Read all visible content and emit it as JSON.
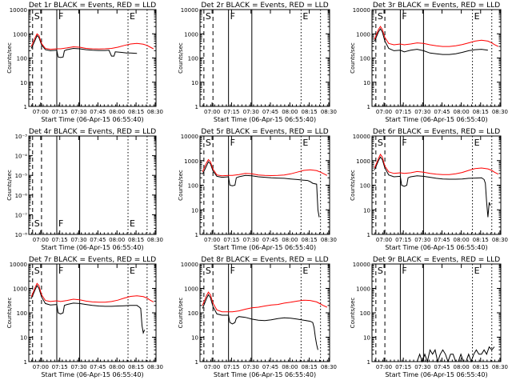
{
  "xlabel": "Start Time (06-Apr-15 06:55:40)",
  "ylabel": "Counts/sec",
  "x_ticks": [
    "07:00",
    "07:15",
    "07:30",
    "07:45",
    "08:00",
    "08:15",
    "08:30"
  ],
  "x_range_minutes": [
    -5,
    95
  ],
  "colors": {
    "events": "#000000",
    "lld": "#ff0000",
    "axes": "#000000"
  },
  "markers": [
    {
      "label": "S",
      "x": -2,
      "style": "dashed"
    },
    {
      "label": "",
      "x": 5,
      "style": "dashed"
    },
    {
      "label": "F",
      "x": 17,
      "style": "solid"
    },
    {
      "label": "",
      "x": 35,
      "style": "solid"
    },
    {
      "label": "E",
      "x": 73,
      "style": "dotted"
    },
    {
      "label": "",
      "x": 88,
      "style": "dotted"
    }
  ],
  "chart_data": [
    {
      "type": "line",
      "title": "Det 1r  BLACK = Events, RED = LLD",
      "yscale": "log",
      "ylim": [
        1,
        10000
      ],
      "y_ticks": [
        "1",
        "10",
        "100",
        "1000",
        "10000"
      ],
      "series": [
        {
          "color": "red",
          "x": [
            -3,
            0,
            1.5,
            3,
            5,
            8,
            12,
            17,
            20,
            25,
            30,
            35,
            40,
            45,
            50,
            55,
            60,
            65,
            70,
            75,
            80,
            85,
            88,
            90,
            93
          ],
          "y": [
            300,
            700,
            1000,
            850,
            400,
            250,
            230,
            240,
            240,
            260,
            290,
            280,
            250,
            240,
            235,
            240,
            250,
            280,
            330,
            380,
            400,
            370,
            330,
            290,
            240
          ]
        },
        {
          "color": "black",
          "x": [
            -3,
            0,
            1.5,
            3,
            5,
            8,
            12,
            17,
            18,
            20,
            22,
            23,
            25,
            30,
            35,
            40,
            45,
            50,
            55,
            58,
            60,
            62,
            63,
            68,
            72,
            75,
            80
          ],
          "y": [
            250,
            550,
            850,
            700,
            350,
            220,
            200,
            210,
            110,
            105,
            110,
            200,
            220,
            250,
            240,
            220,
            210,
            205,
            205,
            210,
            120,
            120,
            180,
            170,
            160,
            160,
            155
          ]
        }
      ]
    },
    {
      "type": "line",
      "title": "Det 2r  BLACK = Events, RED = LLD",
      "yscale": "log",
      "ylim": [
        1,
        10000
      ],
      "y_ticks": [
        "1",
        "10",
        "100",
        "1000",
        "10000"
      ],
      "series": []
    },
    {
      "type": "line",
      "title": "Det 3r  BLACK = Events, RED = LLD",
      "yscale": "log",
      "ylim": [
        1,
        10000
      ],
      "y_ticks": [
        "1",
        "10",
        "100",
        "1000",
        "10000"
      ],
      "series": [
        {
          "color": "red",
          "x": [
            -3,
            0,
            1.5,
            3,
            5,
            8,
            12,
            17,
            20,
            25,
            30,
            35,
            40,
            45,
            50,
            55,
            60,
            65,
            70,
            75,
            80,
            85,
            88,
            90,
            93
          ],
          "y": [
            600,
            1500,
            2000,
            1500,
            700,
            400,
            350,
            380,
            350,
            380,
            420,
            400,
            350,
            320,
            300,
            300,
            320,
            360,
            420,
            500,
            540,
            500,
            420,
            360,
            300
          ]
        },
        {
          "color": "black",
          "x": [
            -3,
            0,
            1.5,
            3,
            5,
            8,
            12,
            17,
            20,
            25,
            30,
            35,
            40,
            45,
            50,
            55,
            60,
            65,
            70,
            75,
            80,
            85
          ],
          "y": [
            500,
            1200,
            1600,
            1200,
            500,
            250,
            200,
            210,
            180,
            210,
            230,
            200,
            160,
            150,
            140,
            140,
            150,
            170,
            200,
            220,
            230,
            210
          ]
        }
      ]
    },
    {
      "type": "line",
      "title": "Det 4r  BLACK = Events, RED = LLD",
      "yscale": "log",
      "ylim": [
        1e-08,
        0.001
      ],
      "y_ticks": [
        "10⁻⁸",
        "10⁻⁷",
        "10⁻⁶",
        "10⁻⁵",
        "10⁻⁴",
        "10⁻³"
      ],
      "series": []
    },
    {
      "type": "line",
      "title": "Det 5r  BLACK = Events, RED = LLD",
      "yscale": "log",
      "ylim": [
        1,
        10000
      ],
      "y_ticks": [
        "1",
        "10",
        "100",
        "1000",
        "10000"
      ],
      "series": [
        {
          "color": "red",
          "x": [
            -3,
            0,
            1.5,
            3,
            5,
            8,
            12,
            17,
            20,
            25,
            30,
            35,
            40,
            45,
            50,
            55,
            60,
            65,
            70,
            75,
            80,
            85,
            88,
            90,
            93
          ],
          "y": [
            350,
            800,
            1100,
            900,
            450,
            260,
            240,
            250,
            250,
            270,
            300,
            290,
            260,
            250,
            245,
            250,
            260,
            290,
            340,
            400,
            420,
            390,
            340,
            300,
            250
          ]
        },
        {
          "color": "black",
          "x": [
            -3,
            0,
            1.5,
            3,
            5,
            8,
            12,
            17,
            18,
            20,
            22,
            23,
            25,
            30,
            35,
            40,
            45,
            50,
            55,
            60,
            65,
            70,
            75,
            78,
            80,
            82,
            85,
            86,
            87
          ],
          "y": [
            280,
            600,
            900,
            750,
            380,
            230,
            210,
            220,
            100,
            95,
            100,
            200,
            220,
            250,
            240,
            220,
            210,
            200,
            195,
            190,
            180,
            170,
            160,
            155,
            140,
            120,
            110,
            10,
            5
          ]
        }
      ]
    },
    {
      "type": "line",
      "title": "Det 6r  BLACK = Events, RED = LLD",
      "yscale": "log",
      "ylim": [
        1,
        10000
      ],
      "y_ticks": [
        "1",
        "10",
        "100",
        "1000",
        "10000"
      ],
      "series": [
        {
          "color": "red",
          "x": [
            -3,
            0,
            1.5,
            3,
            5,
            8,
            12,
            17,
            20,
            25,
            30,
            35,
            40,
            45,
            50,
            55,
            60,
            65,
            70,
            75,
            80,
            85,
            88,
            90,
            93
          ],
          "y": [
            500,
            1200,
            1800,
            1400,
            600,
            350,
            300,
            320,
            300,
            320,
            360,
            340,
            300,
            280,
            270,
            270,
            290,
            330,
            400,
            470,
            500,
            460,
            400,
            340,
            280
          ]
        },
        {
          "color": "black",
          "x": [
            -3,
            0,
            1.5,
            3,
            5,
            8,
            12,
            17,
            18,
            20,
            22,
            23,
            25,
            30,
            35,
            40,
            45,
            50,
            55,
            60,
            65,
            70,
            75,
            80,
            82,
            83,
            84,
            85,
            86,
            87
          ],
          "y": [
            420,
            1000,
            1400,
            1100,
            500,
            260,
            220,
            230,
            100,
            90,
            100,
            200,
            220,
            240,
            230,
            210,
            190,
            180,
            175,
            175,
            180,
            190,
            195,
            200,
            170,
            120,
            20,
            5,
            20,
            15
          ]
        }
      ]
    },
    {
      "type": "line",
      "title": "Det 7r  BLACK = Events, RED = LLD",
      "yscale": "log",
      "ylim": [
        1,
        10000
      ],
      "y_ticks": [
        "1",
        "10",
        "100",
        "1000",
        "10000"
      ],
      "series": [
        {
          "color": "red",
          "x": [
            -3,
            0,
            1.5,
            3,
            5,
            8,
            12,
            17,
            20,
            25,
            30,
            35,
            40,
            45,
            50,
            55,
            60,
            65,
            70,
            75,
            80,
            85,
            88,
            90,
            93
          ],
          "y": [
            450,
            1100,
            1600,
            1300,
            550,
            320,
            290,
            310,
            290,
            320,
            360,
            340,
            300,
            280,
            270,
            270,
            290,
            330,
            400,
            470,
            500,
            460,
            400,
            340,
            280
          ]
        },
        {
          "color": "black",
          "x": [
            -3,
            0,
            1.5,
            3,
            5,
            8,
            12,
            17,
            18,
            20,
            22,
            23,
            25,
            30,
            35,
            40,
            45,
            50,
            55,
            60,
            65,
            70,
            75,
            80,
            82,
            83,
            84,
            85,
            86
          ],
          "y": [
            380,
            900,
            1300,
            1000,
            450,
            240,
            210,
            220,
            100,
            90,
            100,
            200,
            220,
            250,
            240,
            220,
            200,
            190,
            185,
            185,
            190,
            195,
            200,
            200,
            170,
            150,
            30,
            15,
            20
          ]
        }
      ]
    },
    {
      "type": "line",
      "title": "Det 8r  BLACK = Events, RED = LLD",
      "yscale": "log",
      "ylim": [
        1,
        10000
      ],
      "y_ticks": [
        "1",
        "10",
        "100",
        "1000",
        "10000"
      ],
      "series": [
        {
          "color": "red",
          "x": [
            -3,
            0,
            1.5,
            3,
            5,
            8,
            12,
            17,
            20,
            25,
            30,
            35,
            40,
            45,
            50,
            55,
            60,
            65,
            70,
            75,
            80,
            85,
            88,
            90,
            93
          ],
          "y": [
            200,
            500,
            700,
            550,
            250,
            130,
            110,
            110,
            110,
            120,
            140,
            160,
            170,
            190,
            210,
            220,
            250,
            270,
            300,
            330,
            320,
            280,
            230,
            200,
            170
          ]
        },
        {
          "color": "black",
          "x": [
            -3,
            0,
            1.5,
            3,
            5,
            8,
            12,
            17,
            18,
            20,
            22,
            23,
            25,
            30,
            35,
            40,
            45,
            50,
            55,
            60,
            65,
            70,
            75,
            80,
            82,
            83,
            84,
            85,
            86
          ],
          "y": [
            150,
            380,
            550,
            420,
            180,
            90,
            80,
            80,
            40,
            35,
            40,
            60,
            70,
            65,
            55,
            50,
            48,
            52,
            58,
            62,
            60,
            55,
            50,
            45,
            40,
            25,
            10,
            5,
            3
          ]
        }
      ]
    },
    {
      "type": "line",
      "title": "Det 9r  BLACK = Events, RED = LLD",
      "yscale": "log",
      "ylim": [
        1,
        10000
      ],
      "y_ticks": [
        "1",
        "10",
        "100",
        "1000",
        "10000"
      ],
      "series": [
        {
          "color": "black",
          "x": [
            30,
            32,
            34,
            36,
            38,
            40,
            42,
            44,
            46,
            48,
            50,
            52,
            54,
            56,
            58,
            60,
            62,
            64,
            66,
            68,
            70,
            72,
            74,
            76,
            78,
            80,
            82,
            84,
            86,
            88,
            90
          ],
          "y": [
            1,
            2,
            1,
            2,
            1,
            3,
            2,
            3,
            1,
            2,
            3,
            2,
            1,
            2,
            2,
            1,
            1,
            2,
            1,
            1,
            2,
            1,
            2,
            3,
            2,
            2,
            3,
            2,
            4,
            3,
            4
          ]
        }
      ]
    }
  ]
}
